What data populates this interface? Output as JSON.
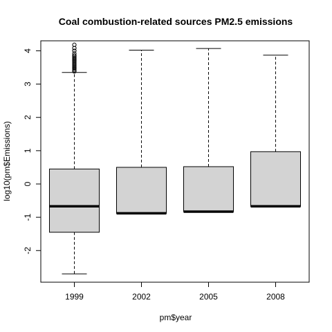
{
  "chart_data": {
    "type": "box",
    "title": "Coal combustion-related sources PM2.5 emissions",
    "xlabel": "pm$year",
    "ylabel": "log10(pm$Emissions)",
    "categories": [
      "1999",
      "2002",
      "2005",
      "2008"
    ],
    "yticks": [
      -2,
      -1,
      0,
      1,
      2,
      3,
      4
    ],
    "ylim": [
      -2.95,
      4.3
    ],
    "grid": false,
    "box_fill": "#d3d3d3",
    "boxes": [
      {
        "category": "1999",
        "lower_whisker": -2.7,
        "q1": -1.45,
        "median": -0.67,
        "q3": 0.45,
        "upper_whisker": 3.35,
        "outliers": [
          3.38,
          3.42,
          3.46,
          3.5,
          3.54,
          3.58,
          3.62,
          3.66,
          3.7,
          3.74,
          3.78,
          3.82,
          3.86,
          3.92,
          4.0,
          4.08,
          4.18
        ]
      },
      {
        "category": "2002",
        "lower_whisker": -0.88,
        "q1": -0.88,
        "median": -0.88,
        "q3": 0.5,
        "upper_whisker": 4.02,
        "outliers": []
      },
      {
        "category": "2005",
        "lower_whisker": -0.83,
        "q1": -0.83,
        "median": -0.83,
        "q3": 0.52,
        "upper_whisker": 4.07,
        "outliers": []
      },
      {
        "category": "2008",
        "lower_whisker": -0.67,
        "q1": -0.67,
        "median": -0.67,
        "q3": 0.97,
        "upper_whisker": 3.87,
        "outliers": []
      }
    ]
  }
}
